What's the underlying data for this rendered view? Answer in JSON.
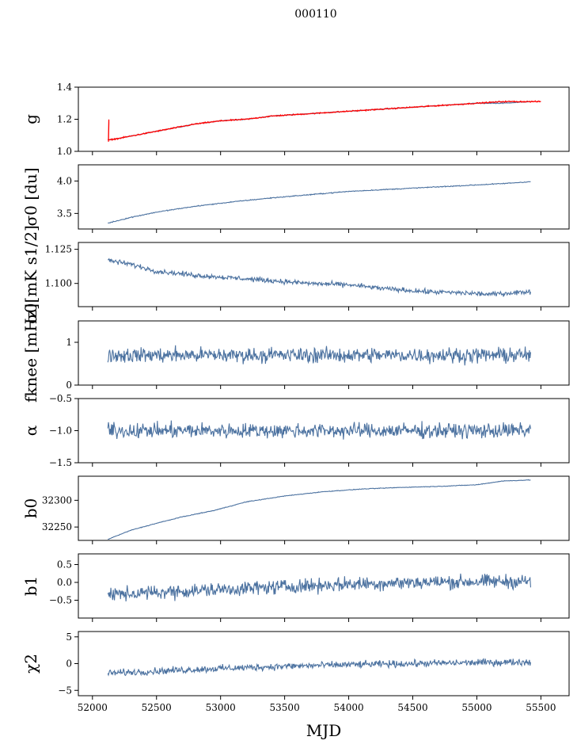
{
  "suptitle": "000110",
  "xlabel": "MJD",
  "colors": {
    "series": "#4c72a0",
    "overlay": "#ff0000"
  },
  "chart_data": [
    {
      "type": "line",
      "ylabel": "g",
      "xlim": [
        51890,
        55720
      ],
      "ylim": [
        1.0,
        1.4
      ],
      "yticks": [
        1.0,
        1.2,
        1.4
      ],
      "ytick_labels": [
        "1.0",
        "1.2",
        "1.4"
      ],
      "series": [
        {
          "x": [
            52120,
            52200,
            52400,
            52600,
            52800,
            53000,
            53200,
            53400,
            53600,
            53800,
            54000,
            54200,
            54400,
            54600,
            54800,
            55000,
            55200,
            55420
          ],
          "y": [
            1.07,
            1.08,
            1.11,
            1.14,
            1.17,
            1.19,
            1.2,
            1.22,
            1.23,
            1.24,
            1.25,
            1.26,
            1.27,
            1.28,
            1.29,
            1.3,
            1.3,
            1.31
          ],
          "noise": 0.002
        },
        {
          "x": [
            52120,
            52200,
            52400,
            52600,
            52800,
            53000,
            53200,
            53400,
            53600,
            53800,
            54000,
            54200,
            54400,
            54600,
            54800,
            55000,
            55200,
            55500
          ],
          "y": [
            1.07,
            1.08,
            1.11,
            1.14,
            1.17,
            1.19,
            1.2,
            1.22,
            1.23,
            1.24,
            1.25,
            1.26,
            1.27,
            1.28,
            1.29,
            1.3,
            1.31,
            1.31
          ],
          "noise": 0.003,
          "color": "overlay",
          "spike": {
            "x": 52125,
            "y_min": 1.06,
            "y_max": 1.2
          }
        }
      ]
    },
    {
      "type": "line",
      "ylabel": "σ0 [du]",
      "xlim": [
        51890,
        55720
      ],
      "ylim": [
        3.26,
        4.25
      ],
      "yticks": [
        3.5,
        4.0
      ],
      "ytick_labels": [
        "3.5",
        "4.0"
      ],
      "series": [
        {
          "x": [
            52120,
            52300,
            52500,
            52800,
            53100,
            53400,
            53700,
            54000,
            54300,
            54600,
            54900,
            55200,
            55420
          ],
          "y": [
            3.35,
            3.44,
            3.52,
            3.61,
            3.68,
            3.74,
            3.79,
            3.84,
            3.87,
            3.9,
            3.93,
            3.96,
            3.99
          ],
          "noise": 0.006
        }
      ]
    },
    {
      "type": "line",
      "ylabel": "σ0[mK s1/2]",
      "xlim": [
        51890,
        55720
      ],
      "ylim": [
        1.083,
        1.13
      ],
      "yticks": [
        1.1,
        1.125
      ],
      "ytick_labels": [
        "1.100",
        "1.125"
      ],
      "series": [
        {
          "x": [
            52120,
            52300,
            52500,
            52800,
            53100,
            53400,
            53700,
            54000,
            54300,
            54600,
            54900,
            55100,
            55420
          ],
          "y": [
            1.117,
            1.114,
            1.109,
            1.106,
            1.104,
            1.102,
            1.1,
            1.099,
            1.096,
            1.094,
            1.093,
            1.092,
            1.094
          ],
          "noise": 0.0015
        }
      ]
    },
    {
      "type": "line",
      "ylabel": "fknee [mHz]",
      "xlim": [
        51890,
        55720
      ],
      "ylim": [
        0,
        1.5
      ],
      "yticks": [
        0,
        1
      ],
      "ytick_labels": [
        "0",
        "1"
      ],
      "series": [
        {
          "x": [
            52120,
            55420
          ],
          "y": [
            0.7,
            0.7
          ],
          "noise": 0.15
        }
      ]
    },
    {
      "type": "line",
      "ylabel": "α",
      "xlim": [
        51890,
        55720
      ],
      "ylim": [
        -1.5,
        -0.5
      ],
      "yticks": [
        -1.5,
        -1.0,
        -0.5
      ],
      "ytick_labels": [
        "−1.5",
        "−1.0",
        "−0.5"
      ],
      "series": [
        {
          "x": [
            52120,
            55420
          ],
          "y": [
            -1.0,
            -1.0
          ],
          "noise": 0.1
        }
      ]
    },
    {
      "type": "line",
      "ylabel": "b0",
      "xlim": [
        51890,
        55720
      ],
      "ylim": [
        32225,
        32345
      ],
      "yticks": [
        32250,
        32300
      ],
      "ytick_labels": [
        "32250",
        "32300"
      ],
      "series": [
        {
          "x": [
            52120,
            52300,
            52500,
            52700,
            52950,
            53200,
            53500,
            53800,
            54100,
            54400,
            54700,
            55000,
            55200,
            55420
          ],
          "y": [
            32227,
            32244,
            32257,
            32269,
            32281,
            32297,
            32308,
            32316,
            32321,
            32324,
            32326,
            32329,
            32336,
            32338
          ],
          "noise": 0.5
        }
      ]
    },
    {
      "type": "line",
      "ylabel": "b1",
      "xlim": [
        51890,
        55720
      ],
      "ylim": [
        -1.0,
        0.8
      ],
      "yticks": [
        -0.5,
        0.0,
        0.5
      ],
      "ytick_labels": [
        "−0.5",
        "0.0",
        "0.5"
      ],
      "series": [
        {
          "x": [
            52120,
            52500,
            53000,
            53500,
            54000,
            54500,
            55000,
            55420
          ],
          "y": [
            -0.35,
            -0.28,
            -0.2,
            -0.12,
            -0.05,
            0.0,
            0.02,
            0.03
          ],
          "noise": 0.17
        }
      ]
    },
    {
      "type": "line",
      "ylabel": "χ2",
      "xlim": [
        51890,
        55720
      ],
      "ylim": [
        -6,
        6
      ],
      "yticks": [
        -5,
        0,
        5
      ],
      "ytick_labels": [
        "−5",
        "0",
        "5"
      ],
      "series": [
        {
          "x": [
            52120,
            52500,
            53000,
            53500,
            54000,
            54500,
            55000,
            55420
          ],
          "y": [
            -1.8,
            -1.4,
            -0.9,
            -0.5,
            -0.2,
            0.0,
            0.2,
            0.3
          ],
          "noise": 0.55
        }
      ]
    }
  ],
  "xticks": [
    52000,
    52500,
    53000,
    53500,
    54000,
    54500,
    55000,
    55500
  ],
  "xtick_labels": [
    "52000",
    "52500",
    "53000",
    "53500",
    "54000",
    "54500",
    "55000",
    "55500"
  ]
}
